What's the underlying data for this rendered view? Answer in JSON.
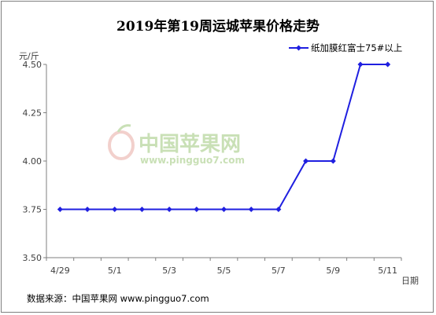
{
  "chart_data": {
    "type": "line",
    "title": "2019年第19周运城苹果价格走势",
    "ylabel": "元/斤",
    "xlabel": "日期",
    "ylim": [
      3.5,
      4.5
    ],
    "yticks": [
      "3.50",
      "3.75",
      "4.00",
      "4.25",
      "4.50"
    ],
    "xtick_labels": [
      "4/29",
      "5/1",
      "5/3",
      "5/5",
      "5/7",
      "5/9",
      "5/11"
    ],
    "x": [
      "4/29",
      "4/30",
      "5/1",
      "5/2",
      "5/3",
      "5/4",
      "5/5",
      "5/6",
      "5/7",
      "5/8",
      "5/9",
      "5/10",
      "5/11"
    ],
    "series": [
      {
        "name": "纸加膜红富士75#以上",
        "values": [
          3.75,
          3.75,
          3.75,
          3.75,
          3.75,
          3.75,
          3.75,
          3.75,
          3.75,
          4.0,
          4.0,
          4.5,
          4.5
        ]
      }
    ],
    "grid": false,
    "legend_position": "top-right"
  },
  "colors": {
    "series": "#1f1fe0",
    "axis": "#7f7f7f"
  },
  "watermark": {
    "name": "中国苹果网",
    "url": "www.pingguo7.com",
    "logo": "apple-logo-icon"
  },
  "source": "数据来源：中国苹果网 www.pingguo7.com"
}
